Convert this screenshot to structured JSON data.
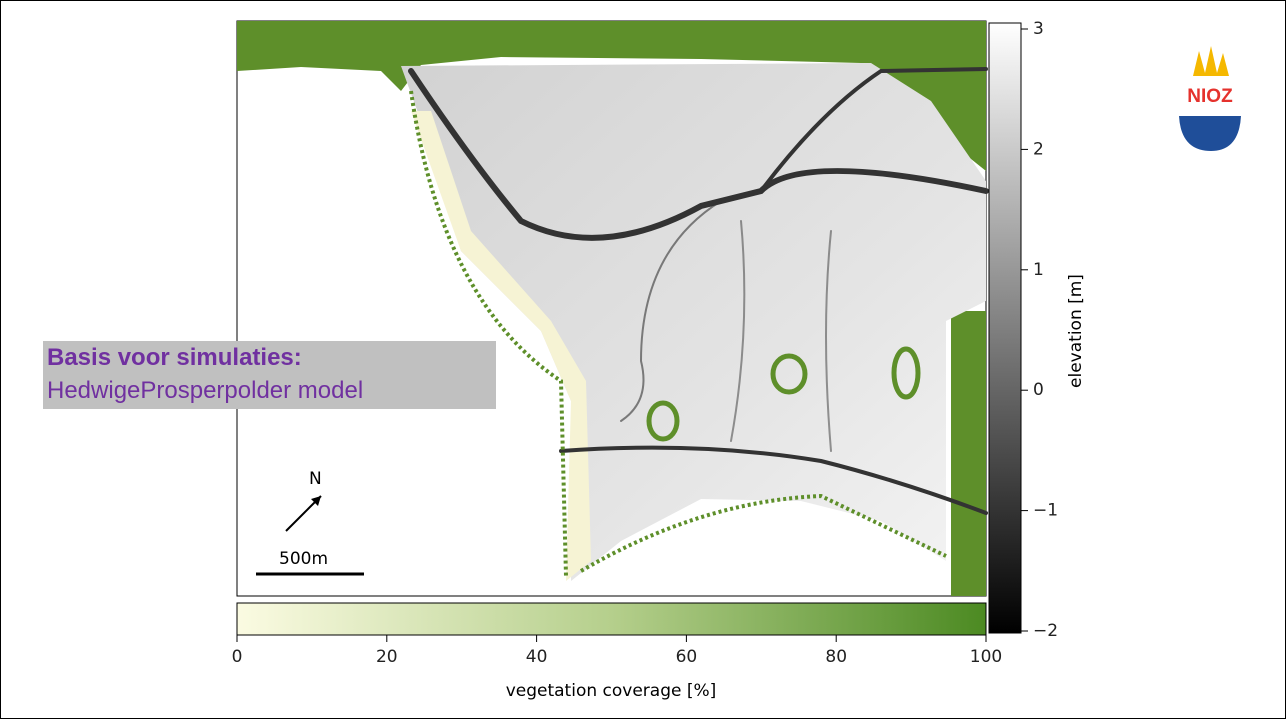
{
  "overlay": {
    "title": "Basis voor simulaties:",
    "subtitle": "HedwigeProsperpolder model"
  },
  "map": {
    "north_label": "N",
    "scale_label": "500m"
  },
  "elevation_colorbar": {
    "label": "elevation [m]",
    "range": [
      -2,
      3
    ],
    "ticks": [
      3,
      2,
      1,
      0,
      {
        "value": -1,
        "label": "−1"
      },
      {
        "value": -2,
        "label": "−2"
      }
    ]
  },
  "vegetation_colorbar": {
    "label": "vegetation coverage [%]",
    "range": [
      0,
      100
    ],
    "ticks": [
      0,
      20,
      40,
      60,
      80,
      100
    ]
  },
  "logo": {
    "text": "NIOZ"
  }
}
